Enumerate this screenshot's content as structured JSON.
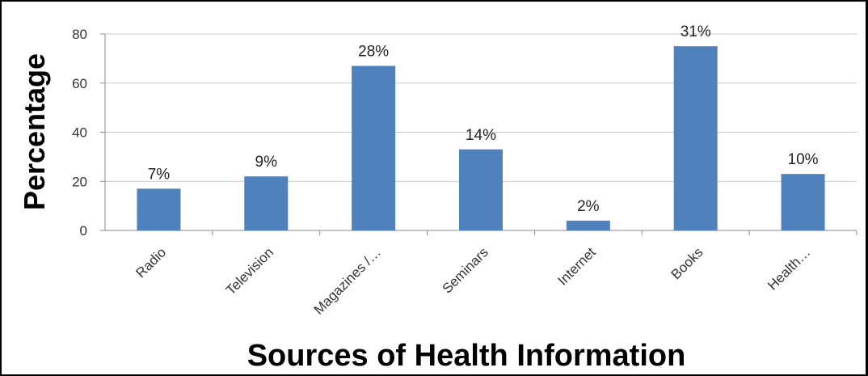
{
  "chart_data": {
    "type": "bar",
    "categories": [
      "Radio",
      "Television",
      "Magazines /…",
      "Seminars",
      "Internet",
      "Books",
      "Health…"
    ],
    "values": [
      17,
      22,
      67,
      33,
      4,
      75,
      23
    ],
    "data_labels": [
      "7%",
      "9%",
      "28%",
      "14%",
      "2%",
      "31%",
      "10%"
    ],
    "xlabel": "Sources of Health Information",
    "ylabel": "Percentage",
    "ylim": [
      0,
      80
    ],
    "yticks": [
      0,
      20,
      40,
      60,
      80
    ],
    "grid": true,
    "bar_color": "#4F81BD"
  }
}
